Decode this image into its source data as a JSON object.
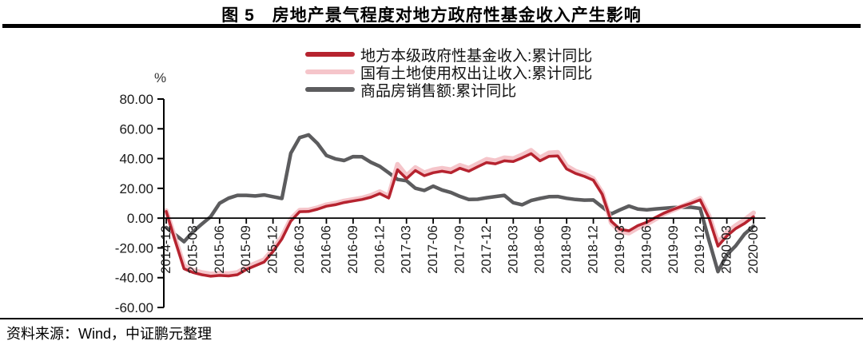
{
  "title": "图 5　房地产景气程度对地方政府性基金收入产生影响",
  "percent_label": "%",
  "source": "资料来源：Wind，中证鹏元整理",
  "colors": {
    "fund_income_red": "#b6232f",
    "land_transfer_pink": "#f5c5ca",
    "housing_sales_gray": "#5c5c5e",
    "axis": "#000000",
    "tick_text": "#1a1a1a"
  },
  "legend": [
    {
      "label": "地方本级政府性基金收入:累计同比",
      "color": "#b6232f"
    },
    {
      "label": "国有土地使用权出让收入:累计同比",
      "color": "#f5c5ca"
    },
    {
      "label": "商品房销售额:累计同比",
      "color": "#5c5c5e"
    }
  ],
  "chart_data": {
    "type": "line",
    "ylabel": "%",
    "ylim": [
      -60,
      80
    ],
    "grid": false,
    "legend_position": "top",
    "y_ticks": [
      80,
      60,
      40,
      20,
      0,
      -20,
      -40,
      -60
    ],
    "y_tick_labels": [
      "80.00",
      "60.00",
      "40.00",
      "20.00",
      "0.00",
      "-20.00",
      "-40.00",
      "-60.00"
    ],
    "x_tick_labels": [
      "2014-12",
      "2015-03",
      "2015-06",
      "2015-09",
      "2015-12",
      "2016-03",
      "2016-06",
      "2016-09",
      "2016-12",
      "2017-03",
      "2017-06",
      "2017-09",
      "2017-12",
      "2018-03",
      "2018-06",
      "2018-09",
      "2018-12",
      "2019-03",
      "2019-06",
      "2019-09",
      "2019-12",
      "2020-03",
      "2020-06"
    ],
    "points_per_tick": 3,
    "x_start": "2014-12",
    "x_end": "2020-06",
    "x_freq": "monthly",
    "series": [
      {
        "name": "地方本级政府性基金收入:累计同比",
        "color": "#b6232f",
        "width": 3.5,
        "values": [
          4.5,
          -15,
          -34,
          -36.5,
          -38,
          -39,
          -38.5,
          -38.8,
          -38,
          -34.5,
          -32,
          -29.5,
          -22.5,
          -14,
          -2,
          4.3,
          4.5,
          6,
          8,
          9,
          10.5,
          11.5,
          12.5,
          14,
          16.5,
          13.5,
          32.5,
          26.5,
          32,
          28.5,
          30.5,
          31.5,
          30.5,
          33.5,
          31.5,
          34.5,
          37.3,
          36.5,
          38.5,
          38,
          40.5,
          43.3,
          38.5,
          41.5,
          41.8,
          33,
          30,
          28,
          25.5,
          16,
          -2,
          -7.5,
          -8.5,
          -5,
          -2.7,
          0.5,
          3.5,
          6,
          8,
          10,
          12.3,
          0,
          -18.8,
          -12,
          -7,
          -3.5,
          1
        ]
      },
      {
        "name": "国有土地使用权出让收入:累计同比",
        "color": "#f5c5ca",
        "width": 6,
        "values": [
          5,
          -13.5,
          -32,
          -35,
          -36.5,
          -37.5,
          -37,
          -37.3,
          -36.5,
          -33,
          -30.5,
          -28,
          -21,
          -12.5,
          -0.5,
          5.3,
          5.5,
          7,
          9,
          10,
          11.5,
          12.5,
          13.5,
          15.2,
          17.8,
          14.8,
          36.1,
          28.5,
          34,
          30.5,
          32.5,
          33.5,
          32.5,
          35.5,
          33.5,
          36.5,
          39.5,
          38.5,
          40.5,
          40,
          42.5,
          45.5,
          40.5,
          43.8,
          44.2,
          35,
          31.5,
          29.5,
          26.5,
          17,
          -3,
          -9,
          -10,
          -6.5,
          -4,
          -0.5,
          3,
          5.5,
          8,
          10.5,
          13.3,
          1.5,
          -16.5,
          -9.5,
          -5,
          -1,
          3.5
        ]
      },
      {
        "name": "商品房销售额:累计同比",
        "color": "#5c5c5e",
        "width": 4.5,
        "values": [
          -6.3,
          -11,
          -15.8,
          -9.2,
          -4,
          1,
          10,
          13.4,
          15.3,
          15.3,
          14.9,
          15.6,
          14.4,
          13.2,
          43.6,
          54.1,
          55.9,
          50.2,
          42.1,
          39.8,
          38.7,
          41.3,
          41.2,
          37.5,
          34.8,
          30.5,
          26,
          25.1,
          20.1,
          18.6,
          21.5,
          18.9,
          17.2,
          14.6,
          12.6,
          12.7,
          13.7,
          14.5,
          15.3,
          10.4,
          9,
          11.8,
          13.2,
          14.4,
          14.5,
          13.3,
          12.5,
          12.1,
          12.2,
          7.5,
          2.8,
          5.6,
          8.1,
          6.1,
          5.6,
          6.2,
          6.7,
          7.1,
          7.3,
          7.3,
          6.5,
          -15,
          -35.9,
          -24.7,
          -18.6,
          -10.6,
          -5.4
        ]
      }
    ]
  }
}
